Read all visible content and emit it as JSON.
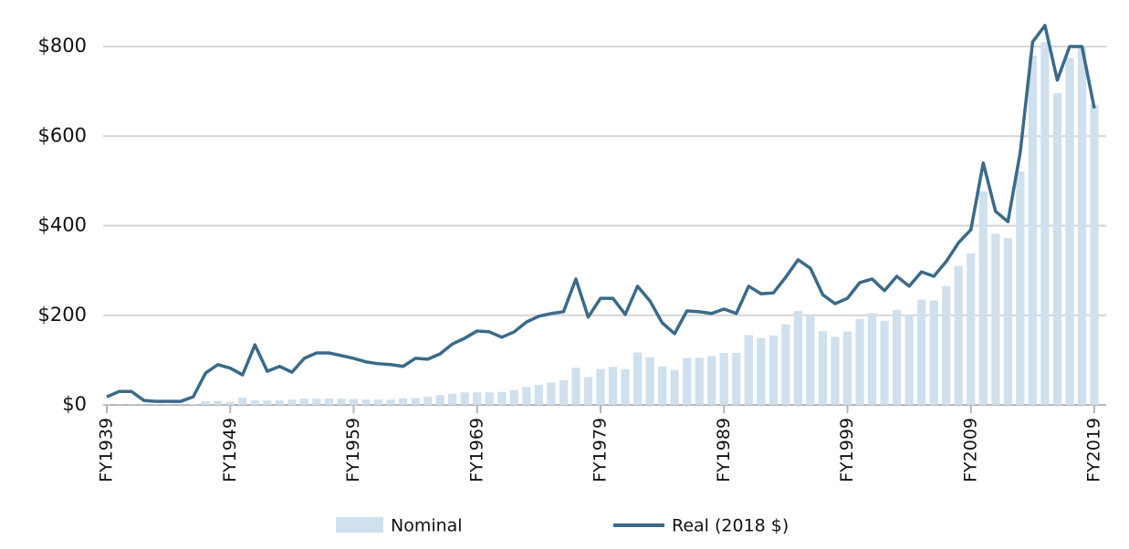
{
  "chart_data": {
    "type": "bar",
    "categories": [
      "FY1939",
      null,
      null,
      null,
      null,
      null,
      null,
      null,
      null,
      null,
      "FY1949",
      null,
      null,
      null,
      null,
      null,
      null,
      null,
      null,
      null,
      "FY1959",
      null,
      null,
      null,
      null,
      null,
      null,
      null,
      null,
      null,
      "FY1969",
      null,
      null,
      null,
      null,
      null,
      null,
      null,
      null,
      null,
      "FY1979",
      null,
      null,
      null,
      null,
      null,
      null,
      null,
      null,
      null,
      "FY1989",
      null,
      null,
      null,
      null,
      null,
      null,
      null,
      null,
      null,
      "FY1999",
      null,
      null,
      null,
      null,
      null,
      null,
      null,
      null,
      null,
      "FY2009",
      null,
      null,
      null,
      null,
      null,
      null,
      null,
      null,
      null,
      "FY2019"
    ],
    "series": [
      {
        "name": "Nominal",
        "type": "bar",
        "color": "#cfe0ee",
        "values": [
          1,
          1,
          1,
          1,
          1,
          1,
          1,
          2,
          8,
          9,
          7,
          16,
          10,
          10,
          10,
          12,
          14,
          14,
          14,
          14,
          13,
          12,
          12,
          12,
          15,
          15,
          18,
          22,
          25,
          28,
          28,
          28,
          29,
          33,
          40,
          45,
          50,
          55,
          83,
          62,
          80,
          85,
          80,
          117,
          106,
          86,
          78,
          105,
          105,
          109,
          116,
          116,
          156,
          149,
          155,
          180,
          210,
          200,
          165,
          152,
          164,
          192,
          205,
          188,
          212,
          202,
          235,
          233,
          265,
          310,
          338,
          477,
          382,
          372,
          521,
          780,
          810,
          696,
          775,
          800,
          670
        ]
      },
      {
        "name": "Real (2018 $)",
        "type": "line",
        "color": "#3b6a8a",
        "values": [
          18,
          30,
          30,
          10,
          8,
          8,
          8,
          18,
          71,
          90,
          82,
          67,
          134,
          75,
          86,
          73,
          104,
          116,
          116,
          110,
          104,
          96,
          92,
          90,
          86,
          104,
          102,
          114,
          136,
          149,
          165,
          163,
          151,
          163,
          185,
          198,
          204,
          208,
          281,
          196,
          238,
          238,
          202,
          265,
          232,
          183,
          159,
          210,
          208,
          204,
          214,
          204,
          265,
          248,
          250,
          285,
          324,
          305,
          246,
          226,
          238,
          273,
          281,
          255,
          287,
          265,
          297,
          287,
          320,
          362,
          391,
          540,
          432,
          409,
          564,
          810,
          847,
          725,
          800,
          800,
          662
        ]
      }
    ],
    "ylim": [
      0,
      860
    ],
    "yticks": [
      {
        "value": 0,
        "label": "$0"
      },
      {
        "value": 200,
        "label": "$200"
      },
      {
        "value": 400,
        "label": "$400"
      },
      {
        "value": 600,
        "label": "$600"
      },
      {
        "value": 800,
        "label": "$800"
      }
    ],
    "grid": true,
    "legend": "bottom"
  }
}
